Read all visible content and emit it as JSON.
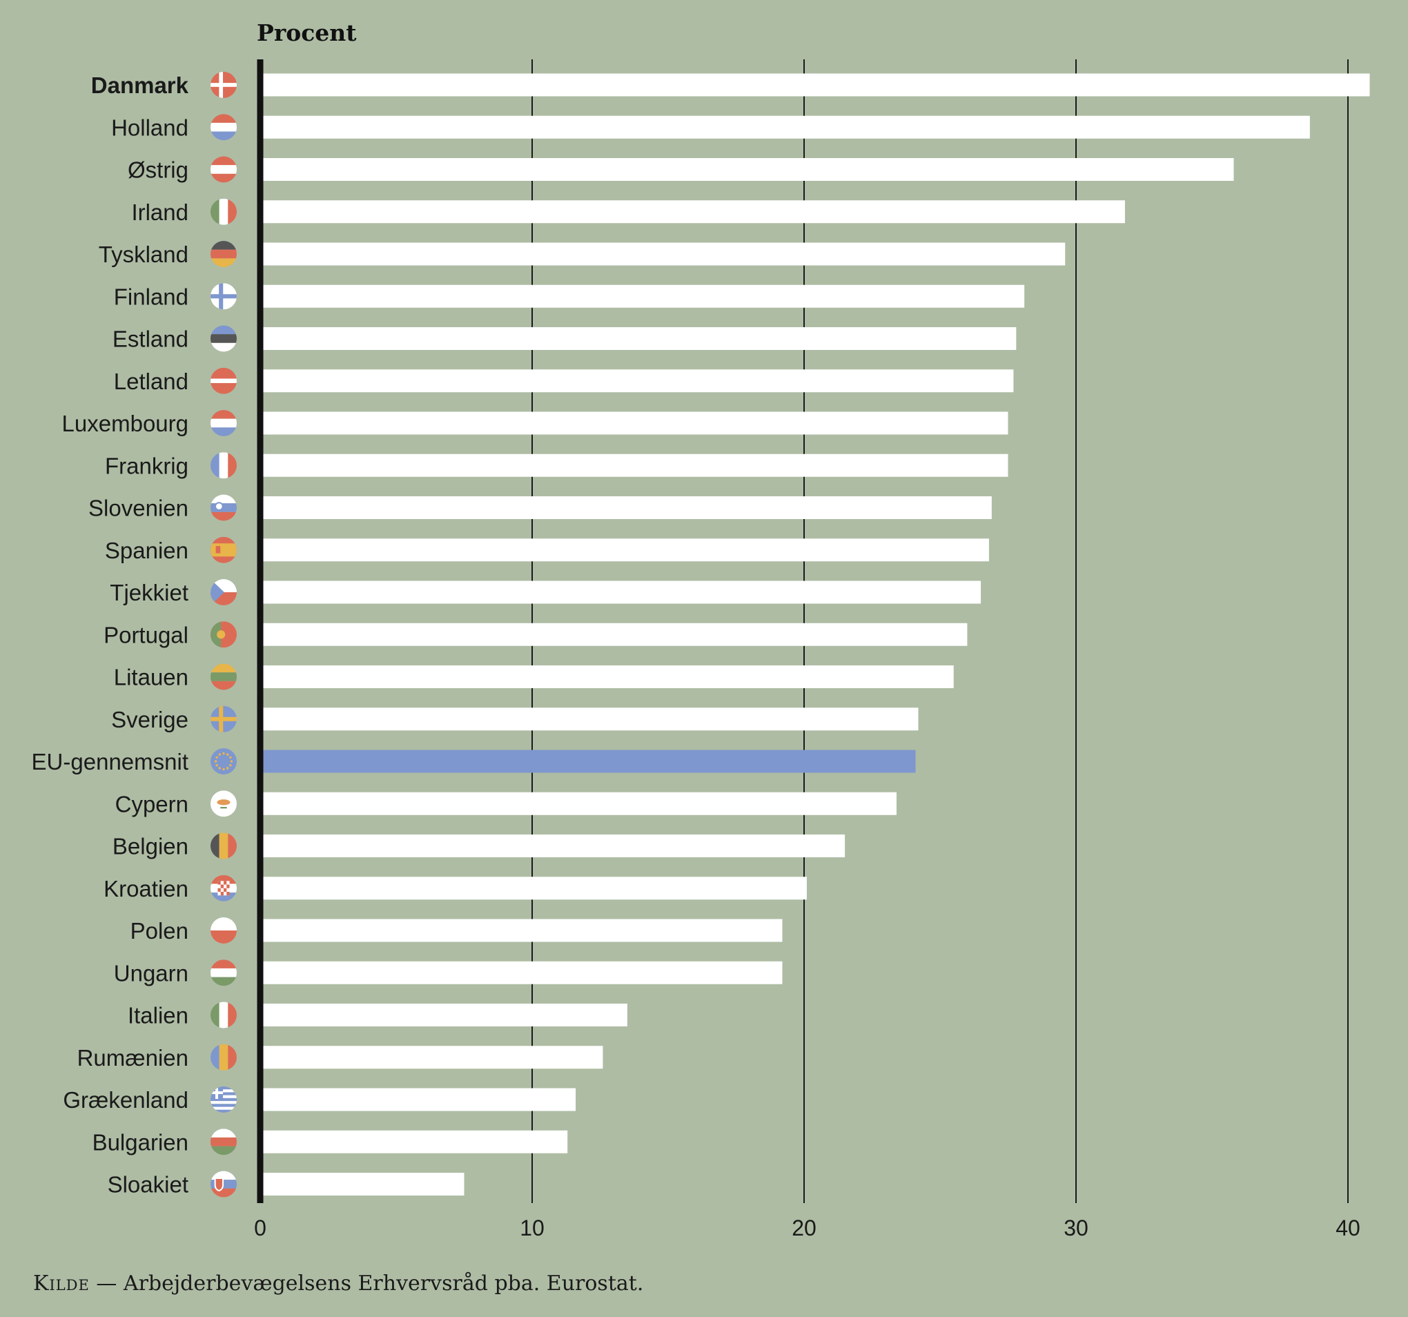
{
  "colors": {
    "background": "#aebca4",
    "bar": "#ffffff",
    "highlight_bar": "#7e97cf",
    "axis": "#111111",
    "gridline": "#1a1a1a"
  },
  "chart_data": {
    "type": "bar",
    "orientation": "horizontal",
    "title": "",
    "xlabel": "",
    "ylabel": "Procent",
    "xlim": [
      0,
      40
    ],
    "xticks": [
      0,
      10,
      20,
      30,
      40
    ],
    "grid": true,
    "highlight_category": "EU-gennemsnit",
    "bold_category": "Danmark",
    "categories": [
      "Danmark",
      "Holland",
      "Østrig",
      "Irland",
      "Tyskland",
      "Finland",
      "Estland",
      "Letland",
      "Luxembourg",
      "Frankrig",
      "Slovenien",
      "Spanien",
      "Tjekkiet",
      "Portugal",
      "Litauen",
      "Sverige",
      "EU-gennemsnit",
      "Cypern",
      "Belgien",
      "Kroatien",
      "Polen",
      "Ungarn",
      "Italien",
      "Rumænien",
      "Grækenland",
      "Bulgarien",
      "Sloakiet"
    ],
    "values": [
      40.8,
      38.6,
      35.8,
      31.8,
      29.6,
      28.1,
      27.8,
      27.7,
      27.5,
      27.5,
      26.9,
      26.8,
      26.5,
      26.0,
      25.5,
      24.2,
      24.1,
      23.4,
      21.5,
      20.1,
      19.2,
      19.2,
      13.5,
      12.6,
      11.6,
      11.3,
      7.5
    ],
    "flags": [
      "flag-denmark-icon",
      "flag-netherlands-icon",
      "flag-austria-icon",
      "flag-ireland-icon",
      "flag-germany-icon",
      "flag-finland-icon",
      "flag-estonia-icon",
      "flag-latvia-icon",
      "flag-luxembourg-icon",
      "flag-france-icon",
      "flag-slovenia-icon",
      "flag-spain-icon",
      "flag-czechia-icon",
      "flag-portugal-icon",
      "flag-lithuania-icon",
      "flag-sweden-icon",
      "flag-eu-icon",
      "flag-cyprus-icon",
      "flag-belgium-icon",
      "flag-croatia-icon",
      "flag-poland-icon",
      "flag-hungary-icon",
      "flag-italy-icon",
      "flag-romania-icon",
      "flag-greece-icon",
      "flag-bulgaria-icon",
      "flag-slovakia-icon"
    ]
  },
  "source": {
    "label": "Kilde",
    "text": " — Arbejderbevægelsens Erhvervsråd pba. Eurostat."
  }
}
